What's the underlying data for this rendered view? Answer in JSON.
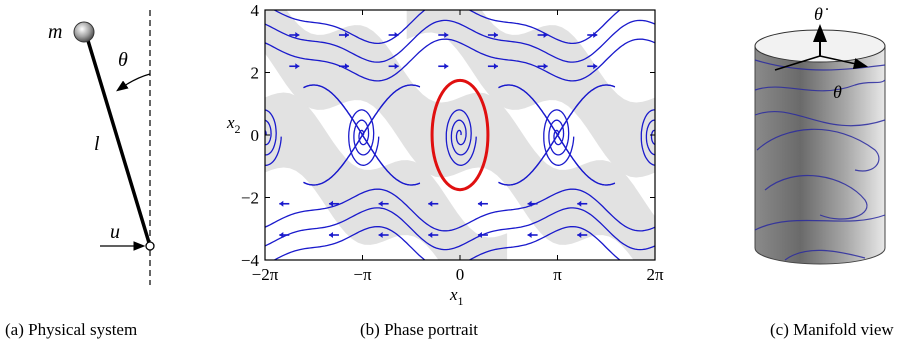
{
  "panels": {
    "pendulum": {
      "caption": "(a) Physical system",
      "labels": {
        "mass": "m",
        "angle": "θ",
        "length": "l",
        "input": "u"
      }
    },
    "phase": {
      "caption": "(b) Phase portrait",
      "xlabel": "x",
      "xlabel_sub": "1",
      "ylabel": "x",
      "ylabel_sub": "2",
      "xticks": [
        "−2π",
        "−π",
        "0",
        "π",
        "2π"
      ],
      "yticks": [
        "4",
        "2",
        "0",
        "−2",
        "−4"
      ]
    },
    "manifold": {
      "caption": "(c) Manifold view",
      "labels": {
        "theta_dot": "θ̇",
        "theta": "θ"
      }
    }
  },
  "chart_data": {
    "type": "line",
    "xlim": [
      -6.283,
      6.283
    ],
    "ylim": [
      -4,
      4
    ],
    "xtick_values": [
      -6.283,
      -3.1416,
      0,
      3.1416,
      6.283
    ],
    "ytick_values": [
      4,
      2,
      0,
      -2,
      -4
    ],
    "stream_color": "#1a1acc",
    "orbit_color": "#e01010",
    "band_color": "#e2e2e2",
    "limit_cycle": {
      "center": [
        0,
        0
      ],
      "semi_x": 0.9,
      "semi_y": 1.75
    },
    "grid": false
  }
}
